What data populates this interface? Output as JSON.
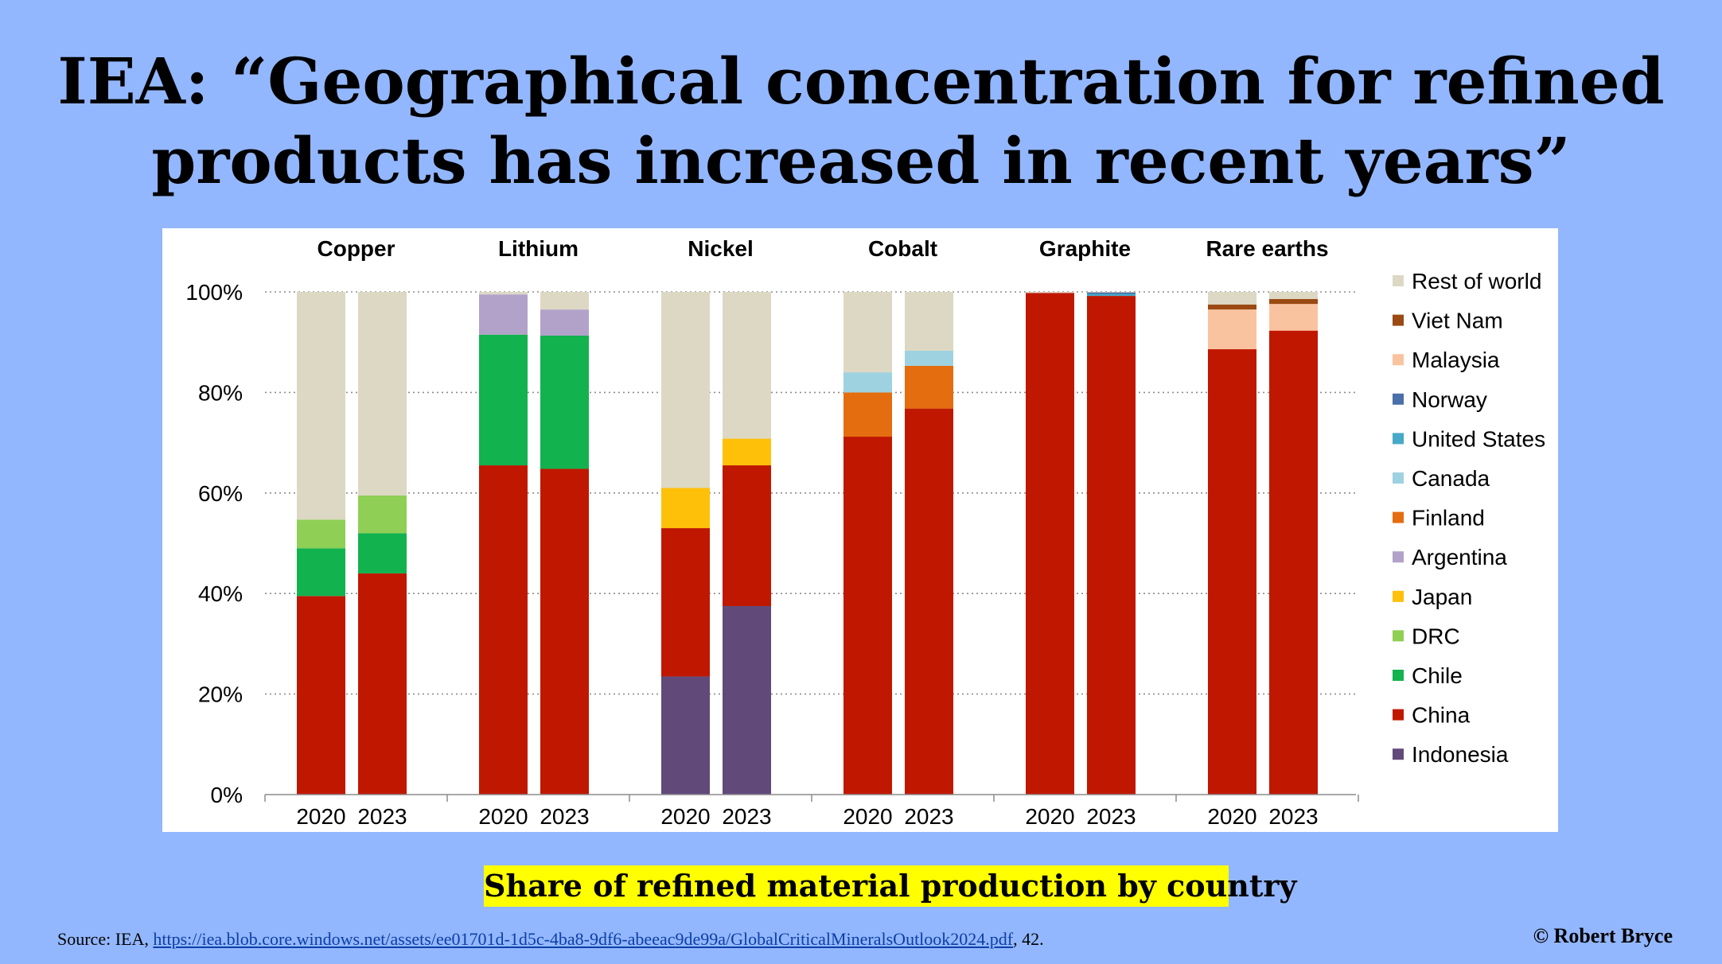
{
  "slide": {
    "title_line1": "IEA: “Geographical concentration for refined",
    "title_line2": "products has increased in recent years”",
    "caption": "Share of refined material production by country",
    "source_prefix": "Source: IEA, ",
    "source_link": "https://iea.blob.core.windows.net/assets/ee01701d-1d5c-4ba8-9df6-abeeac9de99a/GlobalCriticalMineralsOutlook2024.pdf",
    "source_suffix": ", 42.",
    "copyright": "© Robert Bryce"
  },
  "chart_data": {
    "type": "bar",
    "stacked": true,
    "ylim": [
      0,
      100
    ],
    "yticks": [
      0,
      20,
      40,
      60,
      80,
      100
    ],
    "ytick_labels": [
      "0%",
      "20%",
      "40%",
      "60%",
      "80%",
      "100%"
    ],
    "grid": "horizontal-dotted",
    "legend_position": "right",
    "groups": [
      "Copper",
      "Lithium",
      "Nickel",
      "Cobalt",
      "Graphite",
      "Rare earths"
    ],
    "years": [
      "2020",
      "2023"
    ],
    "series": [
      {
        "name": "Indonesia",
        "color": "#614a7a",
        "values": [
          [
            0,
            0
          ],
          [
            0,
            0
          ],
          [
            23.5,
            37.5
          ],
          [
            0,
            0
          ],
          [
            0,
            0
          ],
          [
            0,
            0
          ]
        ]
      },
      {
        "name": "China",
        "color": "#c01800",
        "values": [
          [
            39.5,
            44
          ],
          [
            65.5,
            64.8
          ],
          [
            29.5,
            28
          ],
          [
            71.2,
            76.8
          ],
          [
            99.8,
            99.2
          ],
          [
            88.6,
            92.3
          ]
        ]
      },
      {
        "name": "Chile",
        "color": "#12b24e",
        "values": [
          [
            9.5,
            8
          ],
          [
            26,
            26.5
          ],
          [
            0,
            0
          ],
          [
            0,
            0
          ],
          [
            0,
            0
          ],
          [
            0,
            0
          ]
        ]
      },
      {
        "name": "DRC",
        "color": "#8fcf55",
        "values": [
          [
            5.7,
            7.5
          ],
          [
            0,
            0
          ],
          [
            0,
            0
          ],
          [
            0,
            0
          ],
          [
            0,
            0
          ],
          [
            0,
            0
          ]
        ]
      },
      {
        "name": "Japan",
        "color": "#ffc00a",
        "values": [
          [
            0,
            0
          ],
          [
            0,
            0
          ],
          [
            8,
            5.3
          ],
          [
            0,
            0
          ],
          [
            0,
            0
          ],
          [
            0,
            0
          ]
        ]
      },
      {
        "name": "Argentina",
        "color": "#b2a2c9",
        "values": [
          [
            0,
            0
          ],
          [
            8,
            5.2
          ],
          [
            0,
            0
          ],
          [
            0,
            0
          ],
          [
            0,
            0
          ],
          [
            0,
            0
          ]
        ]
      },
      {
        "name": "Finland",
        "color": "#e46d10",
        "values": [
          [
            0,
            0
          ],
          [
            0,
            0
          ],
          [
            0,
            0
          ],
          [
            8.8,
            8.5
          ],
          [
            0,
            0
          ],
          [
            0,
            0
          ]
        ]
      },
      {
        "name": "Canada",
        "color": "#9ed2e0",
        "values": [
          [
            0,
            0
          ],
          [
            0,
            0
          ],
          [
            0,
            0
          ],
          [
            4,
            3
          ],
          [
            0,
            0
          ],
          [
            0,
            0
          ]
        ]
      },
      {
        "name": "United States",
        "color": "#45a9c7",
        "values": [
          [
            0,
            0
          ],
          [
            0,
            0
          ],
          [
            0,
            0
          ],
          [
            0,
            0
          ],
          [
            0,
            0.4
          ],
          [
            0,
            0
          ]
        ]
      },
      {
        "name": "Norway",
        "color": "#4a6fa9",
        "values": [
          [
            0,
            0
          ],
          [
            0,
            0
          ],
          [
            0,
            0
          ],
          [
            0,
            0
          ],
          [
            0,
            0.3
          ],
          [
            0,
            0
          ]
        ]
      },
      {
        "name": "Malaysia",
        "color": "#fac39f",
        "values": [
          [
            0,
            0
          ],
          [
            0,
            0
          ],
          [
            0,
            0
          ],
          [
            0,
            0
          ],
          [
            0,
            0
          ],
          [
            7.9,
            5.3
          ]
        ]
      },
      {
        "name": "Viet Nam",
        "color": "#9a4a12",
        "values": [
          [
            0,
            0
          ],
          [
            0,
            0
          ],
          [
            0,
            0
          ],
          [
            0,
            0
          ],
          [
            0,
            0
          ],
          [
            1,
            1
          ]
        ]
      },
      {
        "name": "Rest of world",
        "color": "#ddd8c4",
        "values": [
          [
            45.3,
            40.5
          ],
          [
            0.5,
            3.5
          ],
          [
            39,
            29.2
          ],
          [
            16,
            11.7
          ],
          [
            0.2,
            0.1
          ],
          [
            2.5,
            1.4
          ]
        ]
      }
    ],
    "legend_order": [
      "Rest of world",
      "Viet Nam",
      "Malaysia",
      "Norway",
      "United States",
      "Canada",
      "Finland",
      "Argentina",
      "Japan",
      "DRC",
      "Chile",
      "China",
      "Indonesia"
    ]
  }
}
